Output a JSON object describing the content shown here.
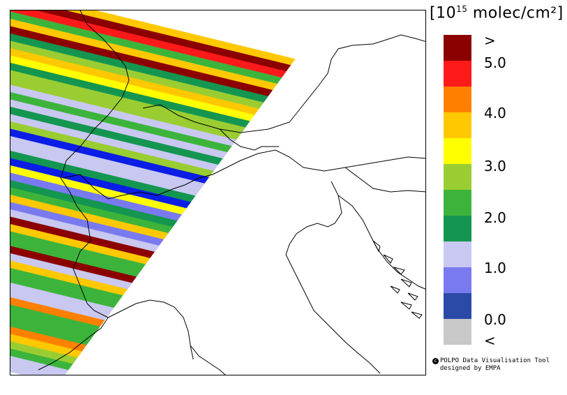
{
  "legend": {
    "title_prefix": "[10",
    "title_exponent": "15",
    "title_suffix": " molec/cm²]",
    "labels": [
      ">",
      "5.0",
      "4.0",
      "3.0",
      "2.0",
      "1.0",
      "0.0",
      "<"
    ],
    "colors": [
      "#8b0000",
      "#ff1a1a",
      "#ff8000",
      "#ffc800",
      "#ffff00",
      "#9acd32",
      "#3cb43c",
      "#149650",
      "#c8c8f0",
      "#7a7af0",
      "#2a4aa8",
      "#c8c8c8"
    ]
  },
  "credit": {
    "line1": "POLPO Data Visualisation Tool",
    "line2": "designed by EMPA"
  },
  "swath_rows": [
    {
      "color": "#ffc800"
    },
    {
      "color": "#8b0000"
    },
    {
      "color": "#ff1a1a"
    },
    {
      "color": "#3cb43c"
    },
    {
      "color": "#ffc800"
    },
    {
      "color": "#8b0000"
    },
    {
      "color": "#149650"
    },
    {
      "color": "#9acd32"
    },
    {
      "color": "#ffc800"
    },
    {
      "color": "#ffff00"
    },
    {
      "color": "#149650"
    },
    {
      "color": "#9acd32"
    },
    {
      "color": "#9acd32"
    },
    {
      "color": "#c8c8f0"
    },
    {
      "color": "#3cb43c"
    },
    {
      "color": "#c8c8f0"
    },
    {
      "color": "#149650"
    },
    {
      "color": "#c8c8f0"
    },
    {
      "color": "#9acd32"
    },
    {
      "color": "#0a1ee6"
    },
    {
      "color": "#c8c8f0"
    },
    {
      "color": "#c8c8f0"
    },
    {
      "color": "#149650"
    },
    {
      "color": "#0a1ee6"
    },
    {
      "color": "#ffff00"
    },
    {
      "color": "#7a7af0"
    },
    {
      "color": "#149650"
    },
    {
      "color": "#3cb43c"
    },
    {
      "color": "#ffc800"
    },
    {
      "color": "#7a7af0"
    },
    {
      "color": "#c8c8f0"
    },
    {
      "color": "#8b0000"
    },
    {
      "color": "#ffc800"
    },
    {
      "color": "#3cb43c"
    },
    {
      "color": "#3cb43c"
    },
    {
      "color": "#8b0000"
    },
    {
      "color": "#c8c8f0"
    },
    {
      "color": "#ffc800"
    },
    {
      "color": "#3cb43c"
    },
    {
      "color": "#3cb43c"
    },
    {
      "color": "#c8c8f0"
    },
    {
      "color": "#c8c8f0"
    },
    {
      "color": "#ff8000"
    },
    {
      "color": "#3cb43c"
    },
    {
      "color": "#3cb43c"
    },
    {
      "color": "#3cb43c"
    },
    {
      "color": "#ff8000"
    },
    {
      "color": "#ffc800"
    },
    {
      "color": "#9acd32"
    },
    {
      "color": "#3cb43c"
    },
    {
      "color": "#c8c8f0"
    }
  ]
}
